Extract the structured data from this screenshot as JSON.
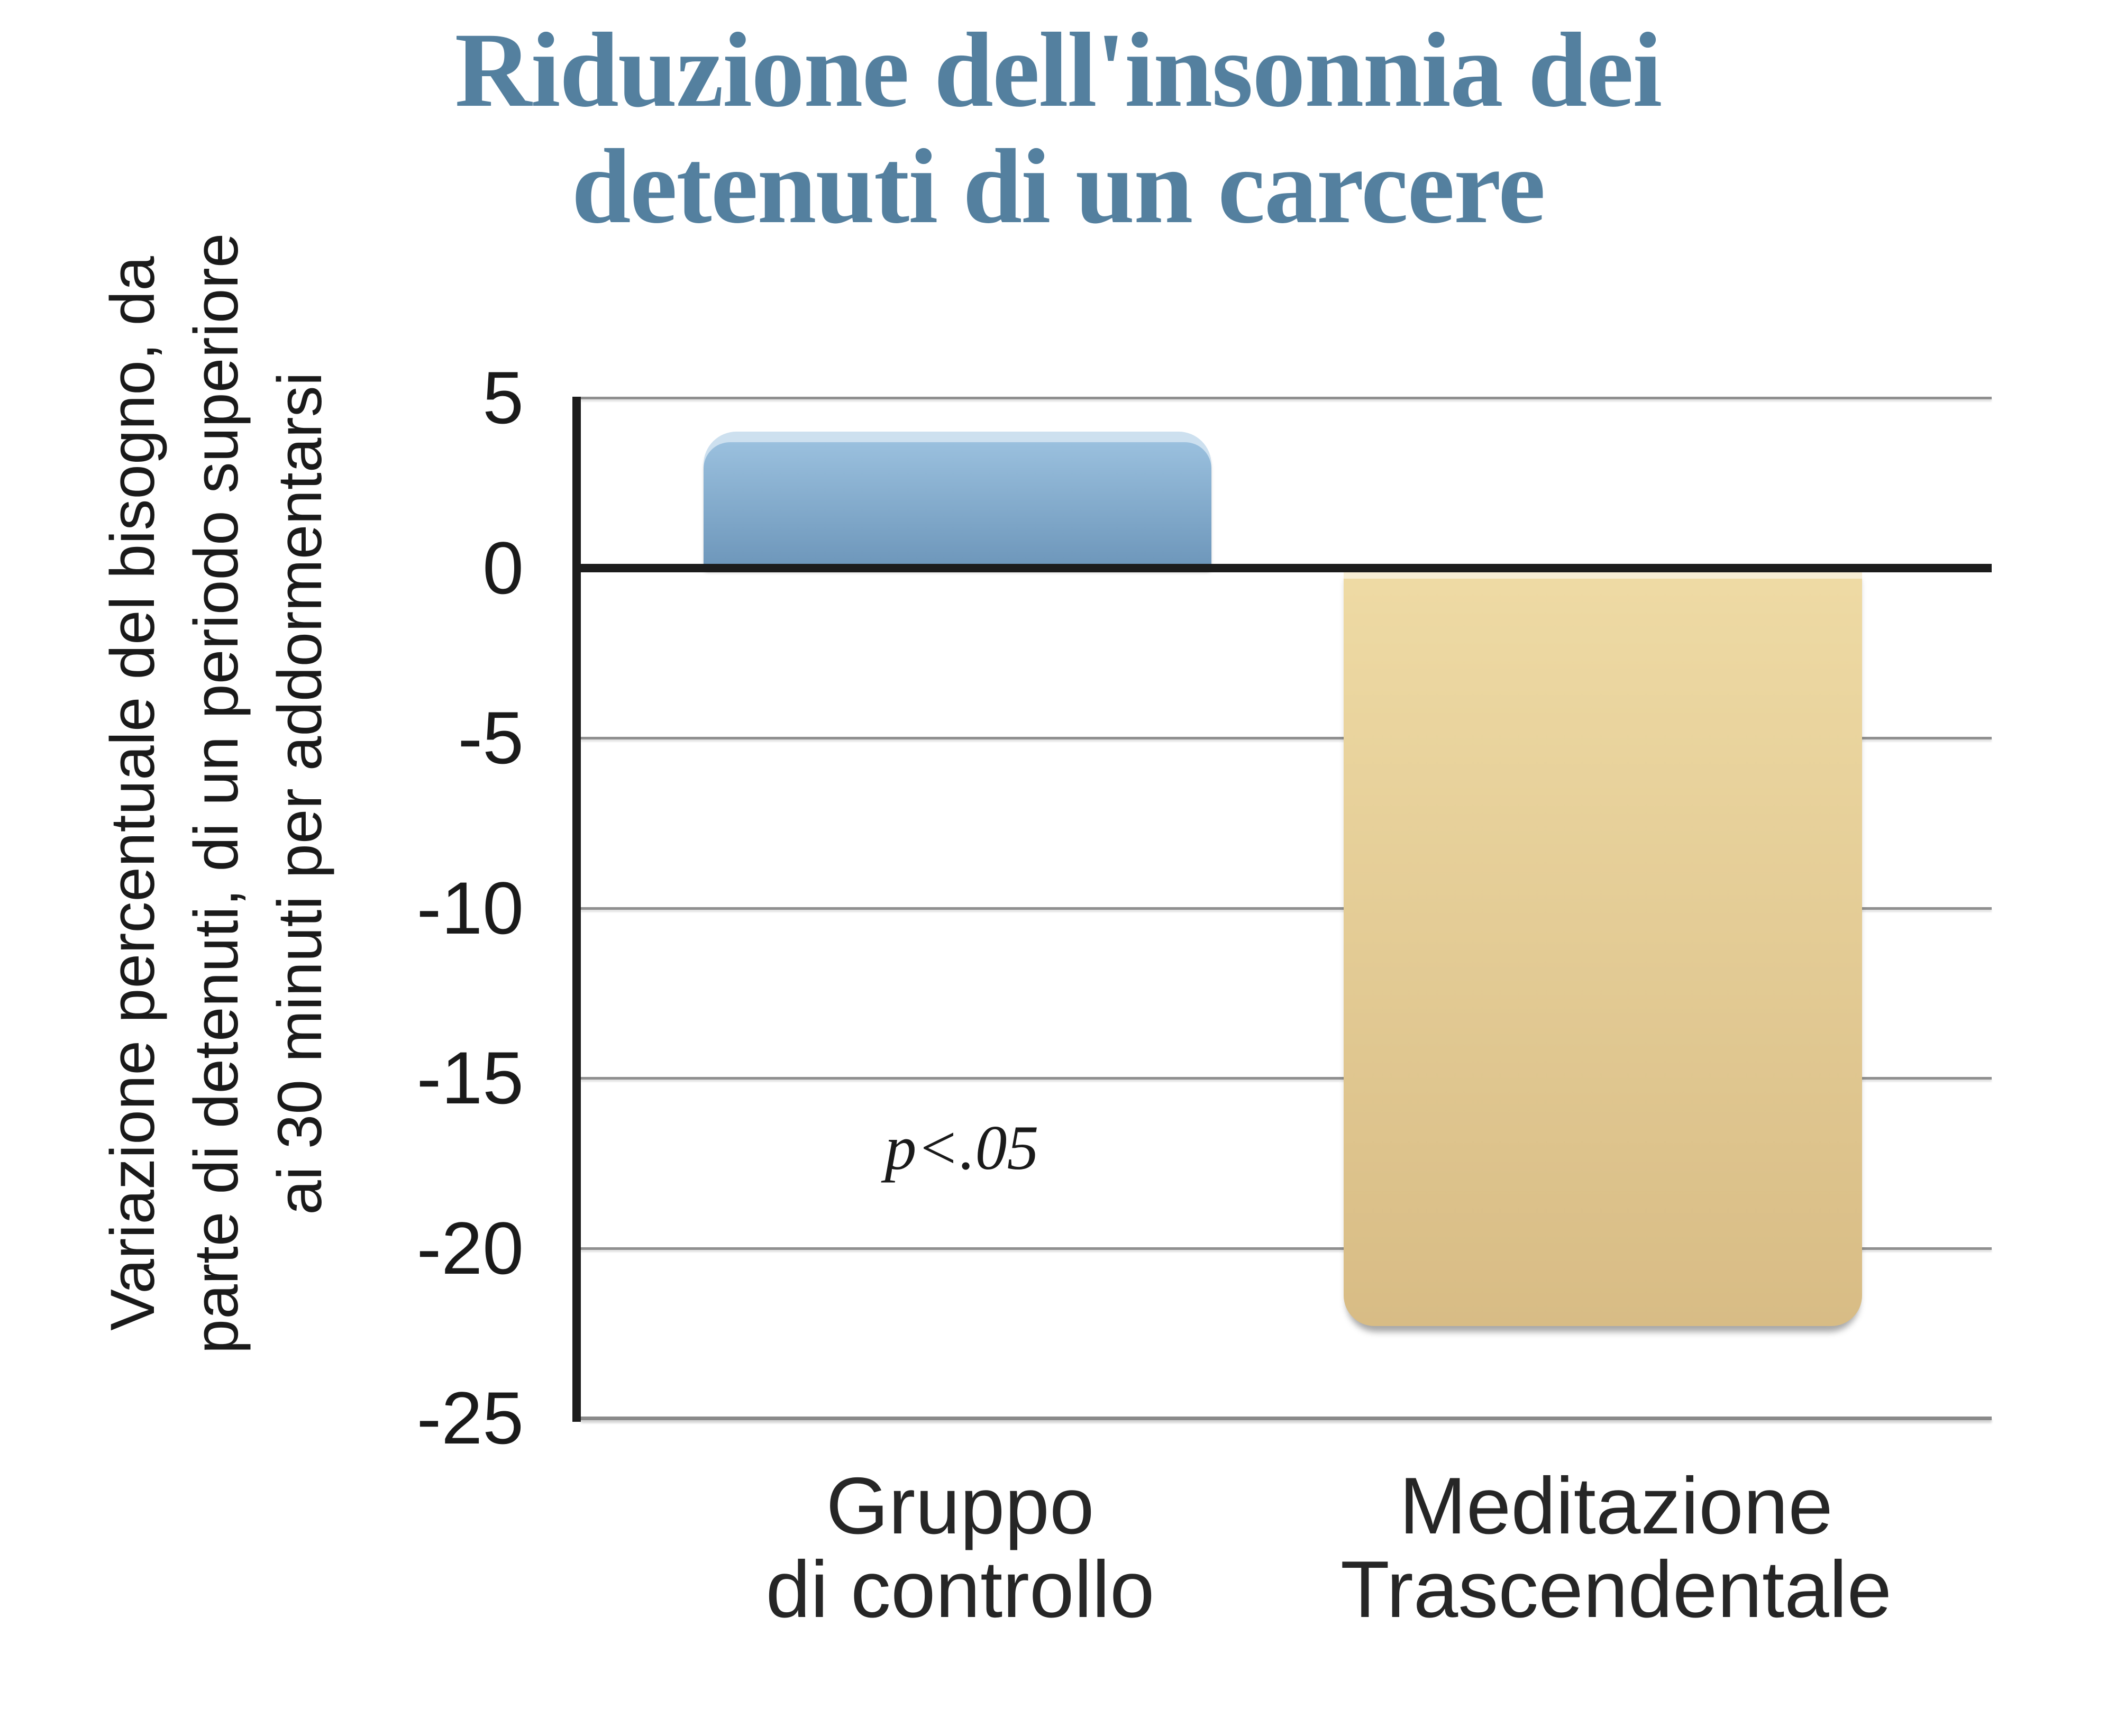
{
  "title": {
    "lines": [
      "Riduzione dell'insonnia dei",
      "detenuti di un carcere"
    ],
    "color": "#54809f"
  },
  "y_axis": {
    "label_lines": [
      "Variazione percentuale del bisogno, da",
      "parte di detenuti, di un periodo superiore",
      "ai 30 minuti per addormentarsi"
    ],
    "ticks": [
      {
        "label": "5",
        "value": 5
      },
      {
        "label": "0",
        "value": 0
      },
      {
        "label": "-5",
        "value": -5
      },
      {
        "label": "-10",
        "value": -10
      },
      {
        "label": "-15",
        "value": -15
      },
      {
        "label": "-20",
        "value": -20
      },
      {
        "label": "-25",
        "value": -25
      }
    ]
  },
  "x_axis": {
    "categories": [
      {
        "lines": [
          "Gruppo",
          "di controllo"
        ]
      },
      {
        "lines": [
          "Meditazione",
          "Trascendentale"
        ]
      }
    ]
  },
  "annotation": {
    "text": "p<.05"
  },
  "bars": [
    {
      "name": "Gruppo di controllo",
      "highlight": "#cde0ef",
      "gradient_top": "#9ac0de",
      "gradient_bottom": "#6d96ba"
    },
    {
      "name": "Meditazione Trascendentale",
      "highlight": "#f7eed5",
      "gradient_top": "#eedaa4",
      "gradient_bottom": "#d8bc85"
    }
  ],
  "colors": {
    "title": "#54809f",
    "axis_line": "#1c1c1c",
    "gridline": "#8f8f8f",
    "tick_text": "#1a1a1a"
  },
  "chart_data": {
    "type": "bar",
    "categories": [
      "Gruppo di controllo",
      "Meditazione Trascendentale"
    ],
    "values": [
      4.0,
      -22.3
    ],
    "title": "Riduzione dell'insonnia dei detenuti di un carcere",
    "xlabel": "",
    "ylabel": "Variazione percentuale del bisogno, da parte di detenuti, di un periodo superiore ai 30 minuti per addormentarsi",
    "ylim": [
      -25,
      5
    ],
    "yticks": [
      5,
      0,
      -5,
      -10,
      -15,
      -20,
      -25
    ],
    "grid": true,
    "legend": false,
    "annotation": "p<.05",
    "bar_colors": [
      "#6d96ba",
      "#ddc08a"
    ]
  }
}
